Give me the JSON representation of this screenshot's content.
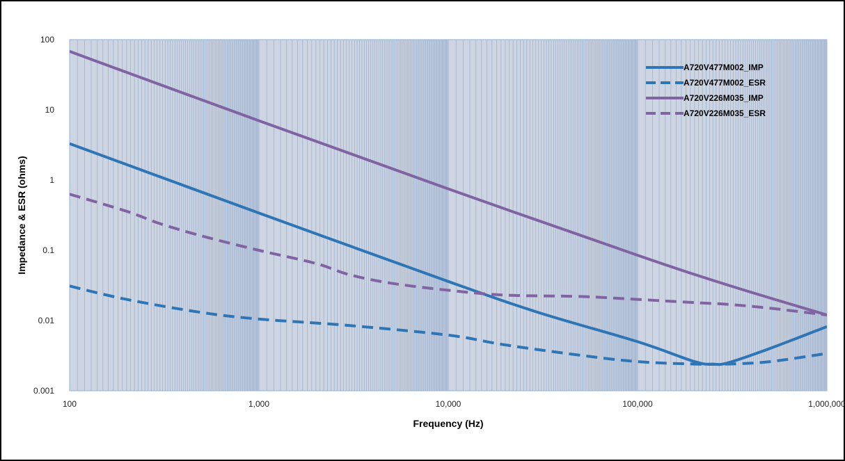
{
  "chart_data": {
    "type": "line",
    "title": "",
    "xlabel": "Frequency (Hz)",
    "ylabel": "Impedance & ESR (ohms)",
    "xscale": "log",
    "yscale": "log",
    "xlim": [
      100,
      1000000
    ],
    "ylim": [
      0.001,
      100
    ],
    "grid": "vertical minor gridlines",
    "legend_position": "top-right",
    "x_tick_labels": [
      "100",
      "1,000",
      "10,000",
      "100,000",
      "1,000,000"
    ],
    "y_tick_labels": [
      "0.001",
      "0.01",
      "0.1",
      "1",
      "10",
      "100"
    ],
    "series": [
      {
        "name": "A720V477M002_IMP",
        "color": "#2e75b6",
        "dash": "solid",
        "points": [
          [
            100,
            3.3
          ],
          [
            1000,
            0.34
          ],
          [
            10000,
            0.036
          ],
          [
            30000,
            0.013
          ],
          [
            100000,
            0.005
          ],
          [
            200000,
            0.0026
          ],
          [
            250000,
            0.0024
          ],
          [
            300000,
            0.0025
          ],
          [
            500000,
            0.004
          ],
          [
            1000000,
            0.0082
          ]
        ]
      },
      {
        "name": "A720V477M002_ESR",
        "color": "#2e75b6",
        "dash": "dashed",
        "points": [
          [
            100,
            0.031
          ],
          [
            200,
            0.02
          ],
          [
            500,
            0.013
          ],
          [
            1000,
            0.0105
          ],
          [
            3000,
            0.0085
          ],
          [
            10000,
            0.0062
          ],
          [
            20000,
            0.0045
          ],
          [
            50000,
            0.0032
          ],
          [
            100000,
            0.0026
          ],
          [
            200000,
            0.0024
          ],
          [
            300000,
            0.0024
          ],
          [
            500000,
            0.0026
          ],
          [
            1000000,
            0.0034
          ]
        ]
      },
      {
        "name": "A720V226M035_IMP",
        "color": "#8064a2",
        "dash": "solid",
        "points": [
          [
            100,
            68
          ],
          [
            1000,
            7
          ],
          [
            10000,
            0.75
          ],
          [
            100000,
            0.085
          ],
          [
            300000,
            0.032
          ],
          [
            1000000,
            0.012
          ]
        ]
      },
      {
        "name": "A720V226M035_ESR",
        "color": "#8064a2",
        "dash": "dashed",
        "points": [
          [
            100,
            0.63
          ],
          [
            200,
            0.36
          ],
          [
            300,
            0.24
          ],
          [
            500,
            0.16
          ],
          [
            1000,
            0.1
          ],
          [
            2000,
            0.065
          ],
          [
            3000,
            0.045
          ],
          [
            5000,
            0.034
          ],
          [
            10000,
            0.027
          ],
          [
            20000,
            0.023
          ],
          [
            50000,
            0.022
          ],
          [
            100000,
            0.02
          ],
          [
            200000,
            0.018
          ],
          [
            300000,
            0.017
          ],
          [
            500000,
            0.015
          ],
          [
            1000000,
            0.012
          ]
        ]
      }
    ]
  }
}
